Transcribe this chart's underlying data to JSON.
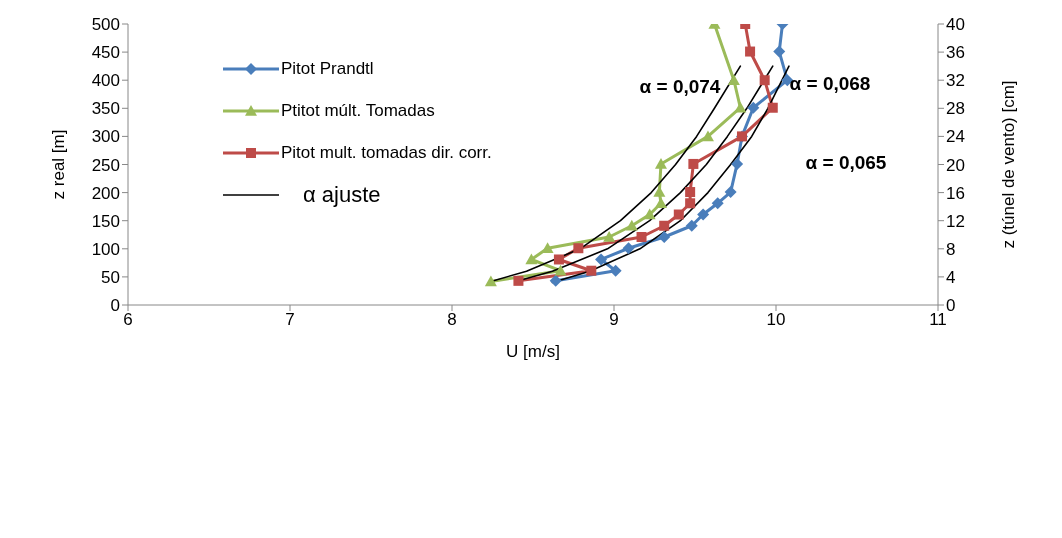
{
  "chart_data": {
    "type": "line",
    "xlabel": "U [m/s]",
    "ylabel": "z real [m]",
    "y2label": "z (túnel de vento) [cm]",
    "xlim": [
      6,
      11
    ],
    "xticks": [
      6,
      7,
      8,
      9,
      10,
      11
    ],
    "ylim": [
      0,
      500
    ],
    "yticks": [
      0,
      50,
      100,
      150,
      200,
      250,
      300,
      350,
      400,
      450,
      500
    ],
    "y2lim": [
      0,
      40
    ],
    "y2ticks": [
      0,
      4,
      8,
      12,
      16,
      20,
      24,
      28,
      32,
      36,
      40
    ],
    "legend": "top left",
    "line_style": "solid",
    "series": [
      {
        "name": "Pitot Prandtl",
        "color": "#4a7ebb",
        "marker": "diamond",
        "x": [
          8.64,
          9.01,
          8.92,
          9.09,
          9.31,
          9.48,
          9.55,
          9.64,
          9.72,
          9.76,
          9.79,
          9.86,
          10.07,
          10.02,
          10.04
        ],
        "values": [
          43,
          61,
          81,
          101,
          121,
          141,
          161,
          181,
          201,
          251,
          300,
          351,
          400,
          451,
          500
        ]
      },
      {
        "name": "Ptitot múlt. Tomadas",
        "color": "#9bbb59",
        "marker": "triangle",
        "x": [
          8.24,
          8.67,
          8.49,
          8.59,
          8.97,
          9.11,
          9.22,
          9.29,
          9.28,
          9.29,
          9.58,
          9.78,
          9.74,
          9.62
        ],
        "values": [
          42,
          61,
          81,
          101,
          121,
          141,
          161,
          181,
          201,
          251,
          300,
          351,
          400,
          500
        ]
      },
      {
        "name": "Pitot mult. tomadas dir. corr.",
        "color": "#be4b48",
        "marker": "square",
        "x": [
          8.41,
          8.86,
          8.66,
          8.78,
          9.17,
          9.31,
          9.4,
          9.47,
          9.47,
          9.49,
          9.79,
          9.98,
          9.93,
          9.84,
          9.81
        ],
        "values": [
          43,
          61,
          81,
          101,
          121,
          141,
          161,
          181,
          201,
          251,
          300,
          351,
          400,
          451,
          500
        ]
      },
      {
        "name": "α ajuste",
        "color": "#000000",
        "marker": "none",
        "x": [
          8.24,
          8.46,
          8.79,
          9.04,
          9.23,
          9.38,
          9.51,
          9.62,
          9.78
        ],
        "values": [
          42,
          60,
          100,
          150,
          200,
          250,
          300,
          350,
          425
        ]
      },
      {
        "color": "#000000",
        "marker": "none",
        "x": [
          8.41,
          8.62,
          8.96,
          9.22,
          9.41,
          9.57,
          9.7,
          9.82,
          9.98
        ],
        "values": [
          43,
          60,
          100,
          150,
          200,
          250,
          300,
          350,
          425
        ]
      },
      {
        "color": "#000000",
        "marker": "none",
        "x": [
          8.62,
          8.85,
          9.16,
          9.41,
          9.58,
          9.72,
          9.85,
          9.95,
          10.08
        ],
        "values": [
          40,
          60,
          100,
          150,
          200,
          250,
          300,
          350,
          425
        ]
      }
    ],
    "annotations": [
      "α = 0,074",
      "α = 0,068",
      "α = 0,065"
    ]
  }
}
